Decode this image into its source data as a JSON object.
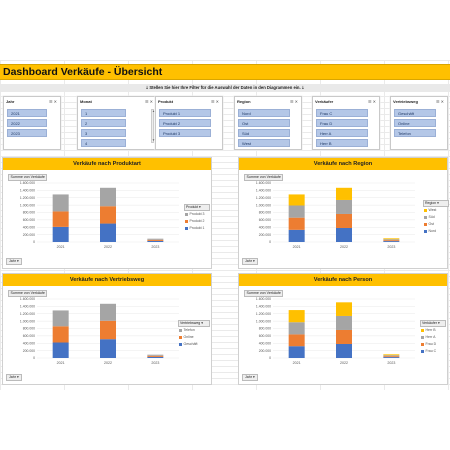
{
  "title": "Dashboard Verkäufe - Übersicht",
  "hint": "Stellen Sie hier Ihre Filter für die Auswahl der Daten in den Diagrammen ein.",
  "colors": {
    "accent": "#ffc000",
    "slicer_item": "#b4c7e7",
    "blue": "#4472c4",
    "orange": "#ed7d31",
    "gray": "#a5a5a5",
    "yellow": "#ffc000"
  },
  "slicers": [
    {
      "title": "Jahr",
      "items": [
        "2021",
        "2022",
        "2023"
      ]
    },
    {
      "title": "Monat",
      "items": [
        "1",
        "2",
        "3",
        "4"
      ]
    },
    {
      "title": "Produkt",
      "items": [
        "Produkt 1",
        "Produkt 2",
        "Produkt 3"
      ]
    },
    {
      "title": "Region",
      "items": [
        "Nord",
        "Ost",
        "Süd",
        "West"
      ]
    },
    {
      "title": "Verkäufer",
      "items": [
        "Frau C",
        "Frau D",
        "Herr A",
        "Herr B"
      ]
    },
    {
      "title": "Vertriebsweg",
      "items": [
        "Geschäft",
        "Online",
        "Telefon"
      ]
    }
  ],
  "panels": [
    {
      "title": "Verkäufe nach Produktart",
      "sum_label": "Summe von Verkäufe",
      "field": "Jahr"
    },
    {
      "title": "Verkäufe nach Region",
      "sum_label": "Summe von Verkäufe",
      "field": "Jahr"
    },
    {
      "title": "Verkäufe nach Vertriebsweg",
      "sum_label": "Summe von Verkäufe",
      "field": "Jahr"
    },
    {
      "title": "Verkäufe nach Person",
      "sum_label": "Summe von Verkäufe",
      "field": "Jahr"
    }
  ],
  "chart_data": [
    {
      "type": "bar",
      "stacked": true,
      "title": "Verkäufe nach Produktart",
      "categories": [
        "2021",
        "2022",
        "2023"
      ],
      "ylim": [
        0,
        1600000
      ],
      "yticks": [
        "0",
        "200.000",
        "400.000",
        "600.000",
        "800.000",
        "1.000.000",
        "1.200.000",
        "1.400.000",
        "1.600.000"
      ],
      "legend_title": "Produkt",
      "legend_position": "right",
      "series": [
        {
          "name": "Produkt 1",
          "color": "#4472c4",
          "values": [
            410000,
            500000,
            30000
          ]
        },
        {
          "name": "Produkt 2",
          "color": "#ed7d31",
          "values": [
            420000,
            470000,
            30000
          ]
        },
        {
          "name": "Produkt 3",
          "color": "#a5a5a5",
          "values": [
            460000,
            500000,
            30000
          ]
        }
      ]
    },
    {
      "type": "bar",
      "stacked": true,
      "title": "Verkäufe nach Region",
      "categories": [
        "2021",
        "2022",
        "2023"
      ],
      "ylim": [
        0,
        1600000
      ],
      "yticks": [
        "0",
        "200.000",
        "400.000",
        "600.000",
        "800.000",
        "1.000.000",
        "1.200.000",
        "1.400.000",
        "1.600.000"
      ],
      "legend_title": "Region",
      "legend_position": "right",
      "series": [
        {
          "name": "Nord",
          "color": "#4472c4",
          "values": [
            330000,
            380000,
            25000
          ]
        },
        {
          "name": "Ost",
          "color": "#ed7d31",
          "values": [
            330000,
            380000,
            25000
          ]
        },
        {
          "name": "Süd",
          "color": "#a5a5a5",
          "values": [
            330000,
            380000,
            25000
          ]
        },
        {
          "name": "West",
          "color": "#ffc000",
          "values": [
            300000,
            330000,
            25000
          ]
        }
      ]
    },
    {
      "type": "bar",
      "stacked": true,
      "title": "Verkäufe nach Vertriebsweg",
      "categories": [
        "2021",
        "2022",
        "2023"
      ],
      "ylim": [
        0,
        1600000
      ],
      "yticks": [
        "0",
        "200.000",
        "400.000",
        "600.000",
        "800.000",
        "1.000.000",
        "1.200.000",
        "1.400.000",
        "1.600.000"
      ],
      "legend_title": "Vertriebsweg",
      "legend_position": "right",
      "series": [
        {
          "name": "Geschäft",
          "color": "#4472c4",
          "values": [
            420000,
            510000,
            30000
          ]
        },
        {
          "name": "Online",
          "color": "#ed7d31",
          "values": [
            440000,
            500000,
            30000
          ]
        },
        {
          "name": "Telefon",
          "color": "#a5a5a5",
          "values": [
            430000,
            460000,
            30000
          ]
        }
      ]
    },
    {
      "type": "bar",
      "stacked": true,
      "title": "Verkäufe nach Person",
      "categories": [
        "2021",
        "2022",
        "2023"
      ],
      "ylim": [
        0,
        1600000
      ],
      "yticks": [
        "0",
        "200.000",
        "400.000",
        "600.000",
        "800.000",
        "1.000.000",
        "1.200.000",
        "1.400.000",
        "1.600.000"
      ],
      "legend_title": "Verkäufer",
      "legend_position": "right",
      "series": [
        {
          "name": "Frau C",
          "color": "#4472c4",
          "values": [
            320000,
            380000,
            25000
          ]
        },
        {
          "name": "Frau D",
          "color": "#ed7d31",
          "values": [
            320000,
            380000,
            25000
          ]
        },
        {
          "name": "Herr A",
          "color": "#a5a5a5",
          "values": [
            330000,
            380000,
            25000
          ]
        },
        {
          "name": "Herr B",
          "color": "#ffc000",
          "values": [
            330000,
            370000,
            25000
          ]
        }
      ]
    }
  ]
}
